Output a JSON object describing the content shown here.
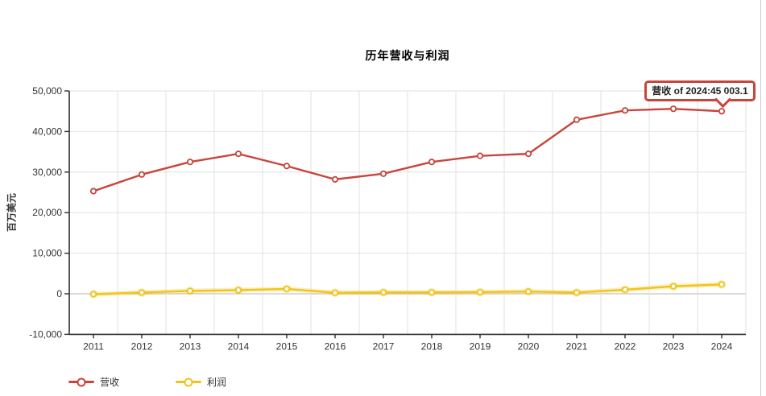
{
  "title": "历年营收与利润",
  "y_axis": {
    "name": "百万美元"
  },
  "tooltip": {
    "text": "营收 of 2024:45,003.1"
  },
  "legend": {
    "items": [
      {
        "key": "revenue",
        "label": "营收",
        "color": "#c8453c"
      },
      {
        "key": "profit",
        "label": "利润",
        "color": "#f0c419"
      }
    ]
  },
  "colors": {
    "axis": "#2f2f2f",
    "grid": "#e2e2e2",
    "zero_line": "#b5b5b5",
    "text": "#333333",
    "tooltip_border": "#c8453c",
    "frame_line": "#c9c9c9"
  },
  "chart_data": {
    "type": "line",
    "title": "历年营收与利润",
    "xlabel": "",
    "ylabel": "百万美元",
    "categories": [
      "2011",
      "2012",
      "2013",
      "2014",
      "2015",
      "2016",
      "2017",
      "2018",
      "2019",
      "2020",
      "2021",
      "2022",
      "2023",
      "2024"
    ],
    "series": [
      {
        "key": "revenue",
        "name": "营收",
        "color": "#c8453c",
        "values": [
          25300,
          29400,
          32500,
          34500,
          31500,
          28200,
          29600,
          32500,
          34000,
          34500,
          42900,
          45200,
          45600,
          45003.1
        ]
      },
      {
        "key": "profit",
        "name": "利润",
        "color": "#f0c419",
        "values": [
          -100,
          300,
          700,
          900,
          1200,
          250,
          350,
          350,
          400,
          550,
          300,
          1000,
          1850,
          2300
        ]
      }
    ],
    "ylim": [
      -10000,
      50000
    ],
    "ytick_step": 10000,
    "grid": true,
    "legend_position": "bottom-left",
    "tooltip_annotation": {
      "series": "营收",
      "year": "2024",
      "value": 45003.1,
      "text": "营收 of 2024:45,003.1"
    }
  }
}
